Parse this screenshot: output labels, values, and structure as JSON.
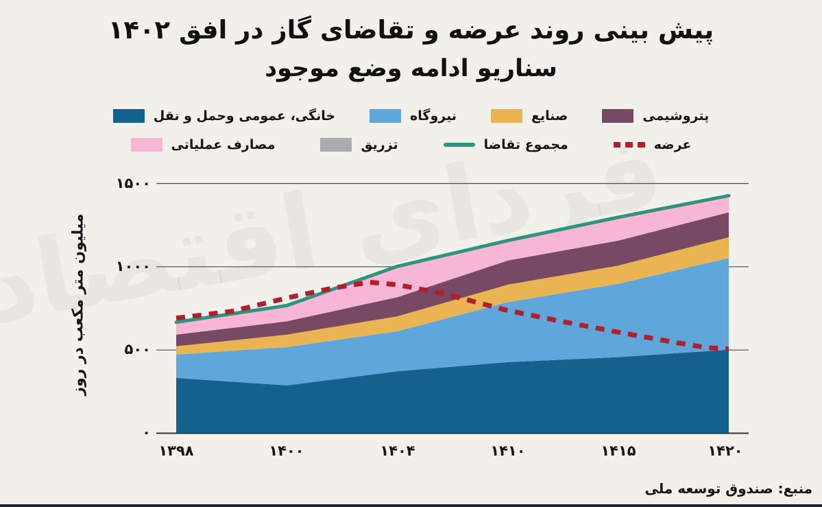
{
  "title": {
    "line1": "پیش بینی روند عرضه و تقاضای گاز در افق ۱۴۰۲",
    "line2": "سناریو ادامه وضع موجود"
  },
  "legend": {
    "row1": [
      {
        "label": "خانگی، عمومی وحمل و نقل",
        "color": "#15618d",
        "type": "area"
      },
      {
        "label": "نیروگاه",
        "color": "#5fa6db",
        "type": "area"
      },
      {
        "label": "صنایع",
        "color": "#e9b451",
        "type": "area"
      },
      {
        "label": "پتروشیمی",
        "color": "#774964",
        "type": "area"
      }
    ],
    "row2": [
      {
        "label": "مصارف عملیاتی",
        "color": "#f7b6d3",
        "type": "area"
      },
      {
        "label": "تزریق",
        "color": "#a9abae",
        "type": "area"
      },
      {
        "label": "مجموع تقاضا",
        "color": "#2e937f",
        "type": "line"
      },
      {
        "label": "عرضه",
        "color": "#b01f2e",
        "type": "dashed"
      }
    ]
  },
  "chart_data": {
    "type": "area",
    "stacked": true,
    "title": "پیش بینی روند عرضه و تقاضای گاز در افق ۱۴۰۲ - سناریو ادامه وضع موجود",
    "xlabel": "",
    "ylabel": "میلیون متر مکعب در روز",
    "ylim": [
      0,
      1500
    ],
    "grid": true,
    "legend_position": "top",
    "categories": [
      "۱۳۹۸",
      "۱۴۰۰",
      "۱۴۰۴",
      "۱۴۱۰",
      "۱۴۱۵",
      "۱۴۲۰"
    ],
    "categories_latin": [
      1398,
      1400,
      1404,
      1410,
      1415,
      1420
    ],
    "y_ticks": [
      0,
      500,
      1000,
      1500
    ],
    "y_tick_labels": [
      "۰",
      "۵۰۰",
      "۱۰۰۰",
      "۱۵۰۰"
    ],
    "series": [
      {
        "name": "خانگی، عمومی وحمل و نقل",
        "color": "#15618d",
        "values": [
          330,
          285,
          370,
          425,
          455,
          500
        ]
      },
      {
        "name": "نیروگاه",
        "color": "#5fa6db",
        "values": [
          140,
          230,
          240,
          360,
          440,
          550
        ]
      },
      {
        "name": "صنایع",
        "color": "#e9b451",
        "values": [
          50,
          75,
          90,
          105,
          110,
          125
        ]
      },
      {
        "name": "پتروشیمی",
        "color": "#774964",
        "values": [
          70,
          80,
          115,
          145,
          150,
          150
        ]
      },
      {
        "name": "مصارف عملیاتی",
        "color": "#f7b6d3",
        "values": [
          75,
          95,
          185,
          120,
          140,
          100
        ]
      },
      {
        "name": "تزریق",
        "color": "#a9abae",
        "values": [
          0,
          0,
          0,
          0,
          0,
          0
        ]
      }
    ],
    "total_demand": {
      "name": "مجموع تقاضا",
      "color": "#2e937f",
      "values": [
        665,
        765,
        1000,
        1155,
        1295,
        1425
      ]
    },
    "supply": {
      "name": "عرضه",
      "color": "#b01f2e",
      "values": [
        690,
        810,
        890,
        735,
        605,
        505
      ],
      "curve_points": [
        [
          0,
          690
        ],
        [
          0.5,
          730
        ],
        [
          1,
          810
        ],
        [
          1.4,
          868
        ],
        [
          1.75,
          905
        ],
        [
          2,
          890
        ],
        [
          2.4,
          840
        ],
        [
          3,
          735
        ],
        [
          3.5,
          668
        ],
        [
          4,
          605
        ],
        [
          4.5,
          545
        ],
        [
          4.8,
          512
        ],
        [
          5,
          505
        ]
      ]
    }
  },
  "source": "منبع: صندوق توسعه ملی",
  "watermark": "فردای اقتصاد",
  "colors": {
    "background": "#f2f0eb",
    "grid": "#4a4a4a",
    "axis": "#2f2f2f",
    "text": "#151515",
    "bottom_bar": "#1c2733"
  }
}
